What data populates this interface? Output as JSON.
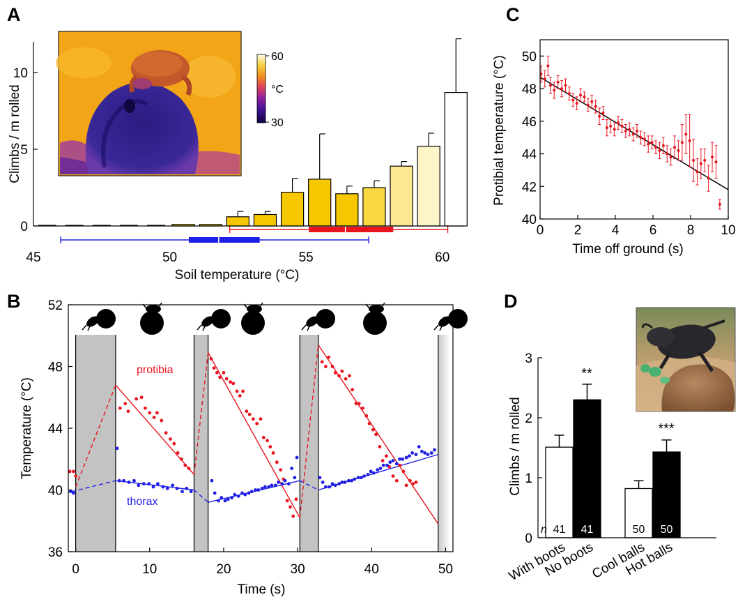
{
  "panels": {
    "A": {
      "letter": "A"
    },
    "B": {
      "letter": "B"
    },
    "C": {
      "letter": "C"
    },
    "D": {
      "letter": "D"
    }
  },
  "inset_A": {
    "colorbar_ticks": [
      "60",
      "°C",
      "30"
    ],
    "description_gradient": [
      "#1a0050",
      "#5a10a0",
      "#c0208a",
      "#f06020",
      "#f8b020",
      "#fff080",
      "#ffffff"
    ]
  },
  "colors": {
    "red": "#e8141e",
    "blue": "#1e1ee6",
    "gray_shade": "#c3c3c3"
  },
  "chart_data": [
    {
      "panel": "A",
      "type": "bar",
      "xlabel": "Soil temperature (°C)",
      "ylabel": "Climbs / m rolled",
      "xlim": [
        45,
        60.8
      ],
      "ylim": [
        0,
        12
      ],
      "x_ticks": [
        "45",
        "50",
        "55",
        "60"
      ],
      "y_ticks": [
        "0",
        "5",
        "10"
      ],
      "bar_x": [
        45.5,
        46.5,
        47.5,
        48.5,
        49.5,
        50.5,
        51.5,
        52.5,
        53.5,
        54.5,
        55.5,
        56.5,
        57.5,
        58.5,
        59.5,
        60.5
      ],
      "values": [
        0.0,
        0.0,
        0.0,
        0.0,
        0.0,
        0.1,
        0.1,
        0.6,
        0.75,
        2.2,
        3.05,
        2.1,
        2.5,
        3.9,
        5.2,
        8.7
      ],
      "errors": [
        0,
        0,
        0,
        0,
        0,
        0,
        0,
        0.35,
        0.2,
        0.9,
        2.95,
        0.5,
        0.45,
        0.3,
        0.85,
        3.5
      ],
      "bar_colors": [
        "#ffffff",
        "#ffffff",
        "#ffffff",
        "#ffffff",
        "#ffffff",
        "#f7d000",
        "#f7d000",
        "#f7c800",
        "#f7c800",
        "#f7c800",
        "#f7c800",
        "#f7c800",
        "#f8d840",
        "#fbe890",
        "#fdf4c8",
        "#ffffff"
      ],
      "ranges": [
        {
          "color": "#1e1ee6",
          "line": [
            46,
            57.3
          ],
          "box": [
            50.7,
            53.3
          ]
        },
        {
          "color": "#e8141e",
          "line": [
            52.2,
            60.2
          ],
          "box": [
            55.1,
            58.2
          ]
        }
      ]
    },
    {
      "panel": "B",
      "type": "scatter",
      "xlabel": "Time (s)",
      "ylabel": "Temperature (°C)",
      "xlim": [
        -1,
        51
      ],
      "ylim": [
        36,
        52
      ],
      "x_ticks": [
        "0",
        "10",
        "20",
        "30",
        "40",
        "50"
      ],
      "y_ticks": [
        "36",
        "40",
        "44",
        "48",
        "52"
      ],
      "shaded": [
        [
          0,
          5.4
        ],
        [
          16,
          17.9
        ],
        [
          30.3,
          32.8
        ],
        [
          49,
          50.6
        ]
      ],
      "series_labels": {
        "protibia": "protibia",
        "thorax": "thorax"
      },
      "red_lines": [
        {
          "x": [
            0,
            5.4
          ],
          "y": [
            40.2,
            46.8
          ],
          "dashed": true
        },
        {
          "x": [
            5.4,
            16.0
          ],
          "y": [
            46.8,
            41.0
          ],
          "dashed": false
        },
        {
          "x": [
            16,
            17.9
          ],
          "y": [
            41.0,
            48.9
          ],
          "dashed": true
        },
        {
          "x": [
            17.9,
            30.3
          ],
          "y": [
            48.9,
            38.2
          ],
          "dashed": false
        },
        {
          "x": [
            30.3,
            32.8
          ],
          "y": [
            38.2,
            49.4
          ],
          "dashed": true
        },
        {
          "x": [
            32.8,
            49.0
          ],
          "y": [
            49.4,
            37.8
          ],
          "dashed": false
        }
      ],
      "blue_lines": [
        {
          "x": [
            -0.5,
            5.4
          ],
          "y": [
            39.9,
            40.6
          ],
          "dashed": true
        },
        {
          "x": [
            5.4,
            16.0
          ],
          "y": [
            40.6,
            40.0
          ],
          "dashed": false
        },
        {
          "x": [
            16,
            17.9
          ],
          "y": [
            40.0,
            39.2
          ],
          "dashed": true
        },
        {
          "x": [
            17.9,
            30.3
          ],
          "y": [
            39.2,
            40.6
          ],
          "dashed": false
        },
        {
          "x": [
            30.3,
            32.8
          ],
          "y": [
            40.6,
            40.0
          ],
          "dashed": true
        },
        {
          "x": [
            32.8,
            49.0
          ],
          "y": [
            40.0,
            42.3
          ],
          "dashed": false
        }
      ],
      "red_points": [
        [
          -0.8,
          41.2
        ],
        [
          -0.3,
          41.2
        ],
        [
          0.0,
          40.9
        ],
        [
          6.0,
          45.3
        ],
        [
          6.7,
          45.6
        ],
        [
          7.1,
          45.1
        ],
        [
          8.2,
          45.9
        ],
        [
          8.9,
          46.0
        ],
        [
          9.4,
          45.3
        ],
        [
          10.0,
          45.0
        ],
        [
          10.6,
          44.7
        ],
        [
          11.0,
          45.0
        ],
        [
          11.6,
          44.5
        ],
        [
          12.2,
          43.7
        ],
        [
          12.8,
          43.3
        ],
        [
          13.3,
          43.0
        ],
        [
          13.8,
          42.4
        ],
        [
          14.3,
          42.0
        ],
        [
          14.8,
          41.6
        ],
        [
          15.3,
          41.4
        ],
        [
          18.3,
          48.5
        ],
        [
          18.7,
          47.9
        ],
        [
          19.1,
          47.6
        ],
        [
          19.5,
          47.3
        ],
        [
          20.0,
          47.6
        ],
        [
          20.4,
          47.2
        ],
        [
          20.9,
          47.0
        ],
        [
          21.3,
          46.9
        ],
        [
          21.8,
          46.4
        ],
        [
          22.2,
          46.1
        ],
        [
          22.6,
          46.4
        ],
        [
          23.1,
          45.1
        ],
        [
          23.5,
          44.9
        ],
        [
          24.0,
          44.6
        ],
        [
          24.5,
          44.3
        ],
        [
          25.0,
          44.6
        ],
        [
          25.4,
          43.4
        ],
        [
          25.9,
          43.2
        ],
        [
          26.3,
          42.8
        ],
        [
          26.7,
          42.4
        ],
        [
          27.2,
          41.8
        ],
        [
          27.7,
          41.3
        ],
        [
          28.1,
          40.7
        ],
        [
          28.6,
          39.3
        ],
        [
          29.0,
          38.9
        ],
        [
          29.4,
          38.3
        ],
        [
          29.8,
          39.4
        ],
        [
          33.0,
          51.3
        ],
        [
          33.3,
          48.3
        ],
        [
          33.8,
          48.0
        ],
        [
          34.2,
          48.6
        ],
        [
          34.7,
          48.0
        ],
        [
          35.1,
          47.6
        ],
        [
          35.6,
          47.4
        ],
        [
          36.0,
          47.7
        ],
        [
          36.5,
          47.2
        ],
        [
          37.0,
          47.4
        ],
        [
          37.4,
          46.5
        ],
        [
          37.9,
          45.6
        ],
        [
          38.3,
          45.6
        ],
        [
          38.8,
          45.3
        ],
        [
          39.3,
          44.8
        ],
        [
          39.7,
          44.3
        ],
        [
          40.2,
          43.9
        ],
        [
          40.6,
          43.6
        ],
        [
          41.1,
          42.8
        ],
        [
          41.5,
          41.9
        ],
        [
          42.0,
          42.2
        ],
        [
          42.4,
          41.5
        ],
        [
          42.9,
          40.9
        ],
        [
          43.4,
          40.6
        ],
        [
          43.8,
          41.6
        ],
        [
          44.3,
          41.2
        ],
        [
          44.7,
          40.3
        ],
        [
          45.2,
          40.6
        ],
        [
          45.6,
          40.4
        ],
        [
          46.0,
          40.5
        ]
      ],
      "blue_points": [
        [
          -0.7,
          39.9
        ],
        [
          -0.3,
          39.8
        ],
        [
          5.6,
          42.7
        ],
        [
          5.9,
          40.6
        ],
        [
          6.5,
          40.6
        ],
        [
          7.2,
          40.5
        ],
        [
          7.9,
          40.6
        ],
        [
          8.5,
          40.3
        ],
        [
          9.2,
          40.4
        ],
        [
          9.9,
          40.4
        ],
        [
          10.5,
          40.2
        ],
        [
          11.1,
          40.4
        ],
        [
          11.8,
          40.2
        ],
        [
          12.4,
          40.1
        ],
        [
          13.1,
          40.3
        ],
        [
          13.7,
          40.1
        ],
        [
          14.4,
          39.9
        ],
        [
          15.0,
          40.1
        ],
        [
          15.6,
          39.9
        ],
        [
          18.4,
          40.6
        ],
        [
          18.8,
          39.8
        ],
        [
          19.3,
          39.3
        ],
        [
          19.7,
          39.5
        ],
        [
          20.2,
          39.3
        ],
        [
          20.6,
          39.4
        ],
        [
          21.1,
          39.5
        ],
        [
          21.5,
          39.7
        ],
        [
          22.0,
          39.6
        ],
        [
          22.5,
          39.8
        ],
        [
          22.9,
          39.7
        ],
        [
          23.4,
          39.8
        ],
        [
          23.8,
          39.9
        ],
        [
          24.3,
          40.0
        ],
        [
          24.7,
          40.0
        ],
        [
          25.2,
          40.1
        ],
        [
          25.6,
          40.2
        ],
        [
          26.1,
          40.2
        ],
        [
          26.5,
          40.3
        ],
        [
          27.0,
          40.3
        ],
        [
          27.4,
          40.5
        ],
        [
          27.9,
          40.4
        ],
        [
          28.3,
          40.6
        ],
        [
          28.8,
          40.4
        ],
        [
          29.2,
          41.4
        ],
        [
          29.6,
          40.8
        ],
        [
          29.9,
          42.1
        ],
        [
          33.0,
          40.8
        ],
        [
          33.4,
          40.5
        ],
        [
          33.8,
          40.2
        ],
        [
          34.3,
          40.2
        ],
        [
          34.7,
          40.4
        ],
        [
          35.1,
          40.3
        ],
        [
          35.6,
          40.4
        ],
        [
          36.0,
          40.5
        ],
        [
          36.4,
          40.5
        ],
        [
          36.9,
          40.6
        ],
        [
          37.3,
          40.6
        ],
        [
          37.7,
          40.7
        ],
        [
          38.2,
          40.8
        ],
        [
          38.6,
          40.8
        ],
        [
          39.0,
          40.9
        ],
        [
          39.5,
          41.0
        ],
        [
          39.9,
          41.2
        ],
        [
          40.3,
          41.1
        ],
        [
          40.8,
          41.3
        ],
        [
          41.2,
          41.4
        ],
        [
          41.6,
          41.6
        ],
        [
          42.1,
          41.6
        ],
        [
          42.5,
          41.8
        ],
        [
          42.9,
          41.9
        ],
        [
          43.4,
          41.7
        ],
        [
          43.8,
          42.0
        ],
        [
          44.2,
          42.0
        ],
        [
          44.7,
          42.1
        ],
        [
          45.1,
          42.2
        ],
        [
          45.5,
          42.4
        ],
        [
          46.0,
          42.3
        ],
        [
          46.4,
          42.8
        ],
        [
          46.8,
          42.5
        ],
        [
          47.2,
          42.4
        ],
        [
          47.6,
          42.3
        ],
        [
          48.1,
          42.4
        ],
        [
          48.5,
          42.6
        ]
      ]
    },
    {
      "panel": "C",
      "type": "scatter",
      "xlabel": "Time off ground (s)",
      "ylabel": "Protibial temperature (°C)",
      "xlim": [
        0,
        10
      ],
      "ylim": [
        40,
        51
      ],
      "x_ticks": [
        "0",
        "2",
        "4",
        "6",
        "8",
        "10"
      ],
      "y_ticks": [
        "40",
        "42",
        "44",
        "46",
        "48",
        "50"
      ],
      "fit": {
        "x": [
          0,
          10
        ],
        "y": [
          48.7,
          41.8
        ]
      },
      "points": [
        [
          0.05,
          48.9,
          0.5
        ],
        [
          0.25,
          48.6,
          0.5
        ],
        [
          0.42,
          49.4,
          0.6
        ],
        [
          0.55,
          48.2,
          0.5
        ],
        [
          0.75,
          47.9,
          0.5
        ],
        [
          0.95,
          48.4,
          0.4
        ],
        [
          1.15,
          48.0,
          0.5
        ],
        [
          1.35,
          48.2,
          0.4
        ],
        [
          1.55,
          47.7,
          0.4
        ],
        [
          1.75,
          47.3,
          0.4
        ],
        [
          1.95,
          47.1,
          0.4
        ],
        [
          2.15,
          47.6,
          0.4
        ],
        [
          2.35,
          47.5,
          0.3
        ],
        [
          2.55,
          47.0,
          0.4
        ],
        [
          2.75,
          47.2,
          0.4
        ],
        [
          2.95,
          46.9,
          0.4
        ],
        [
          3.15,
          46.3,
          0.5
        ],
        [
          3.35,
          46.5,
          0.4
        ],
        [
          3.55,
          45.6,
          0.5
        ],
        [
          3.75,
          45.7,
          0.4
        ],
        [
          3.95,
          45.5,
          0.4
        ],
        [
          4.15,
          45.9,
          0.4
        ],
        [
          4.35,
          45.7,
          0.4
        ],
        [
          4.55,
          45.4,
          0.4
        ],
        [
          4.75,
          45.5,
          0.4
        ],
        [
          4.95,
          45.2,
          0.4
        ],
        [
          5.15,
          45.4,
          0.4
        ],
        [
          5.35,
          45.0,
          0.4
        ],
        [
          5.55,
          44.9,
          0.4
        ],
        [
          5.75,
          44.6,
          0.5
        ],
        [
          5.95,
          44.7,
          0.4
        ],
        [
          6.15,
          44.4,
          0.4
        ],
        [
          6.35,
          44.2,
          0.5
        ],
        [
          6.55,
          44.5,
          0.5
        ],
        [
          6.75,
          44.0,
          0.5
        ],
        [
          6.95,
          43.8,
          0.5
        ],
        [
          7.15,
          44.4,
          0.7
        ],
        [
          7.35,
          44.2,
          0.6
        ],
        [
          7.55,
          44.7,
          1.1
        ],
        [
          7.75,
          45.2,
          1.2
        ],
        [
          7.95,
          44.8,
          1.6
        ],
        [
          8.15,
          43.6,
          1.3
        ],
        [
          8.35,
          42.9,
          0.8
        ],
        [
          8.55,
          43.4,
          0.9
        ],
        [
          8.75,
          43.6,
          0.7
        ],
        [
          8.95,
          42.5,
          0.8
        ],
        [
          9.15,
          43.8,
          0.9
        ],
        [
          9.35,
          43.5,
          1.0
        ],
        [
          9.55,
          40.9,
          0.3
        ]
      ]
    },
    {
      "panel": "D",
      "type": "bar",
      "ylabel": "Climbs / m rolled",
      "ylim": [
        0,
        3
      ],
      "y_ticks": [
        "0",
        "1",
        "2",
        "3"
      ],
      "categories": [
        "With boots",
        "No boots",
        "Cool balls",
        "Hot balls"
      ],
      "values": [
        1.51,
        2.3,
        0.82,
        1.43
      ],
      "errors": [
        0.2,
        0.26,
        0.13,
        0.2
      ],
      "fills": [
        "#ffffff",
        "#000000",
        "#ffffff",
        "#000000"
      ],
      "n_label": "n",
      "n_values": [
        "41",
        "41",
        "50",
        "50"
      ],
      "significance": [
        "**",
        "***"
      ]
    }
  ]
}
